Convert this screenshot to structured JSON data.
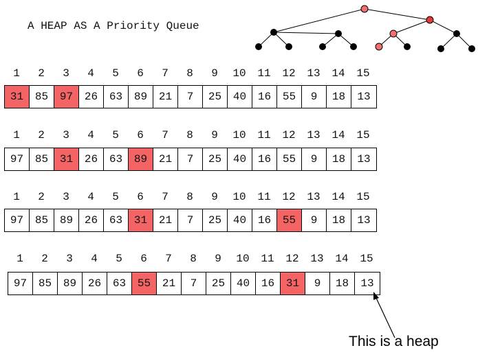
{
  "title": "A HEAP AS A Priority Queue",
  "caption": "This is a heap",
  "colors": {
    "highlight": "#f46464",
    "node_red": "#e53935",
    "node_pink": "#f47070",
    "node_black": "#000000"
  },
  "indices": [
    "1",
    "2",
    "3",
    "4",
    "5",
    "6",
    "7",
    "8",
    "9",
    "10",
    "11",
    "12",
    "13",
    "14",
    "15"
  ],
  "arrays": [
    {
      "values": [
        "31",
        "85",
        "97",
        "26",
        "63",
        "89",
        "21",
        "7",
        "25",
        "40",
        "16",
        "55",
        "9",
        "18",
        "13"
      ],
      "highlight": [
        0,
        2
      ]
    },
    {
      "values": [
        "97",
        "85",
        "31",
        "26",
        "63",
        "89",
        "21",
        "7",
        "25",
        "40",
        "16",
        "55",
        "9",
        "18",
        "13"
      ],
      "highlight": [
        2,
        5
      ]
    },
    {
      "values": [
        "97",
        "85",
        "89",
        "26",
        "63",
        "31",
        "21",
        "7",
        "25",
        "40",
        "16",
        "55",
        "9",
        "18",
        "13"
      ],
      "highlight": [
        5,
        11
      ]
    },
    {
      "values": [
        "97",
        "85",
        "89",
        "26",
        "63",
        "55",
        "21",
        "7",
        "25",
        "40",
        "16",
        "31",
        "9",
        "18",
        "13"
      ],
      "highlight": [
        5,
        11
      ]
    }
  ]
}
